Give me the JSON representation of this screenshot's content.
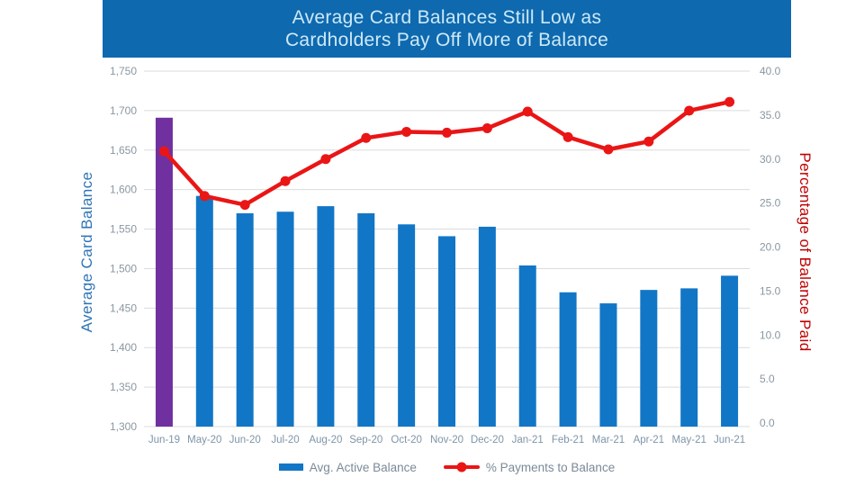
{
  "title": {
    "line1": "Average Card Balances Still Low as",
    "line2": "Cardholders Pay Off More of Balance"
  },
  "left_axis": {
    "title": "Average Card Balance",
    "tick_labels": [
      "1,750",
      "1,700",
      "1,650",
      "1,600",
      "1,550",
      "1,500",
      "1,450",
      "1,400",
      "1,350",
      "1,300"
    ]
  },
  "right_axis": {
    "title": "Percentage of Balance Paid",
    "tick_labels": [
      "40.0",
      "35.0",
      "30.0",
      "25.0",
      "20.0",
      "15.0",
      "10.0",
      "5.0",
      "0.0"
    ]
  },
  "legend": {
    "bar_label": "Avg. Active Balance",
    "line_label": "% Payments to Balance"
  },
  "colors": {
    "banner_bg": "#0E69AF",
    "title_text": "#CDE9F7",
    "bar": "#1276C6",
    "bar_highlight": "#7030A0",
    "line": "#EA1515",
    "left_axis_title": "#2E74B5",
    "right_axis_title": "#C00000",
    "tick_label": "#8A97A1",
    "x_label": "#7E95A8",
    "legend_text": "#7B8A98",
    "gridline": "#D9DCDE"
  },
  "chart_data": {
    "type": "combo",
    "title": "Average Card Balances Still Low as Cardholders Pay Off More of Balance",
    "categories": [
      "Jun-19",
      "May-20",
      "Jun-20",
      "Jul-20",
      "Aug-20",
      "Sep-20",
      "Oct-20",
      "Nov-20",
      "Dec-20",
      "Jan-21",
      "Feb-21",
      "Mar-21",
      "Apr-21",
      "May-21",
      "Jun-21"
    ],
    "series": [
      {
        "name": "Avg. Active Balance",
        "type": "bar",
        "axis": "left",
        "values": [
          1691,
          1592,
          1570,
          1572,
          1579,
          1570,
          1556,
          1541,
          1553,
          1504,
          1470,
          1456,
          1473,
          1475,
          1491
        ],
        "highlight_index": 0
      },
      {
        "name": "% Payments to Balance",
        "type": "line",
        "axis": "right",
        "values": [
          30.9,
          25.8,
          24.8,
          27.5,
          30.0,
          32.4,
          33.1,
          33.0,
          33.5,
          35.4,
          32.5,
          31.1,
          32.0,
          35.5,
          36.5
        ]
      }
    ],
    "left_ylabel": "Average Card Balance",
    "right_ylabel": "Percentage of Balance Paid",
    "left_ylim": [
      1300,
      1750
    ],
    "right_ylim": [
      0,
      40
    ],
    "grid": "horizontal",
    "legend_position": "bottom"
  }
}
